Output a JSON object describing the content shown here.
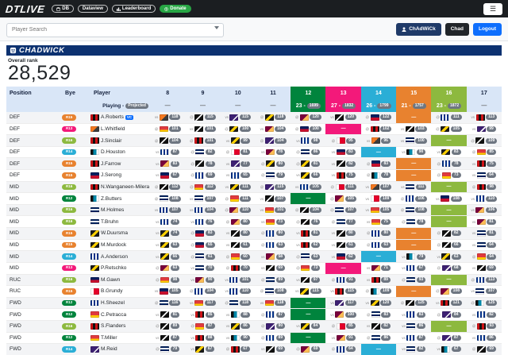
{
  "navbar": {
    "brand": "DTLIVE",
    "badges": [
      {
        "label": "DB",
        "icon": "database-icon",
        "style": "outline"
      },
      {
        "label": "Dataview",
        "icon": "",
        "style": "outline"
      },
      {
        "label": "Leaderboard",
        "icon": "leaderboard-icon",
        "style": "outline"
      },
      {
        "label": "Donate",
        "icon": "donate-icon",
        "style": "green"
      }
    ]
  },
  "search": {
    "placeholder": "Player Search",
    "buttons": [
      {
        "label": "ChAdWiCk",
        "style": "navy",
        "icon": "person-icon"
      },
      {
        "label": "Chad",
        "style": "dark",
        "icon": ""
      },
      {
        "label": "Logout",
        "style": "blue",
        "icon": ""
      }
    ]
  },
  "team": {
    "name": "CHADWICK",
    "rank_label": "Overall rank",
    "rank_value": "28,529"
  },
  "colors": {
    "byes": {
      "R12": "#00843d",
      "R13": "#f3197a",
      "R14": "#2aaed6",
      "R15": "#e8822f",
      "R16": "#8db93f"
    },
    "score_pill": "#6e7681",
    "logout_blue": "#0d6efd",
    "donate_green": "#28a745",
    "banner_navy": "#0c3170"
  },
  "table": {
    "columns": {
      "position": "Position",
      "bye": "Bye",
      "player": "Player"
    },
    "subheader_label": "Playing -",
    "subheader_badge": "Projected",
    "rounds": [
      {
        "num": "8",
        "proj": "—"
      },
      {
        "num": "9",
        "proj": "—"
      },
      {
        "num": "10",
        "proj": "—"
      },
      {
        "num": "11",
        "proj": "—"
      },
      {
        "num": "12",
        "bye": "R12",
        "score": "23 -",
        "proj_badge": "1699"
      },
      {
        "num": "13",
        "bye": "R13",
        "score": "27 -",
        "proj_badge": "1832"
      },
      {
        "num": "14",
        "bye": "R14",
        "score": "26 -",
        "proj_badge": "1799"
      },
      {
        "num": "15",
        "bye": "R15",
        "score": "21 -",
        "proj_badge": "1757"
      },
      {
        "num": "16",
        "bye": "R16",
        "score": "23 -",
        "proj_badge": "1872"
      },
      {
        "num": "17",
        "proj": "—"
      }
    ],
    "rows": [
      {
        "position": "DEF",
        "bye": "R15",
        "name": "A.Roberts",
        "badge": "VC",
        "flag": 2,
        "cells": [
          "vs|118|7",
          "@|115|12",
          "vs|115|4",
          "@|118|1",
          "@|120|9",
          "vs|120|12",
          "@|122|3",
          "bye",
          "@|111|0",
          "vs|113|2"
        ]
      },
      {
        "position": "DEF",
        "bye": "R13",
        "name": "L.Whitfield",
        "badge": "",
        "flag": 7,
        "cells": [
          "@|101|10",
          "vs|101|12",
          "@|100|1",
          "vs|104|9",
          "@|100|3",
          "bye",
          "@|102|2",
          "vs|103|12",
          "@|105|1",
          "vs|99|4"
        ]
      },
      {
        "position": "DEF",
        "bye": "R16",
        "name": "J.Sinclair",
        "badge": "",
        "flag": 2,
        "cells": [
          "@|104|12",
          "@|101|2",
          "vs|99|1",
          "@|104|4",
          "vs|98|0",
          "@|95|5",
          "vs|96|7",
          "vs|100|8",
          "bye",
          "@|109|12"
        ]
      },
      {
        "position": "DEF",
        "bye": "R14",
        "name": "D.Houston",
        "badge": "",
        "flag": 6,
        "cells": [
          "vs|87|0",
          "@|82|8",
          "@|81|5",
          "vs|78|9",
          "@|86|8",
          "vs|83|3",
          "bye",
          "vs|90|6",
          "vs|83|1",
          "@|85|10"
        ]
      },
      {
        "position": "DEF",
        "bye": "R15",
        "name": "J.Farrow",
        "badge": "",
        "flag": 2,
        "cells": [
          "vs|83|9",
          "@|78|12",
          "vs|77|4",
          "@|80|1",
          "@|81|1",
          "vs|82|12",
          "@|83|3",
          "bye",
          "@|78|0",
          "vs|75|2"
        ]
      },
      {
        "position": "DEF",
        "bye": "R15",
        "name": "J.Serong",
        "badge": "",
        "flag": 3,
        "cells": [
          "vs|67|3",
          "@|69|0",
          "vs|65|0",
          "@|79|8",
          "vs|66|1",
          "vs|75|2",
          "@|78|6",
          "bye",
          "@|73|10",
          "vs|64|8"
        ]
      },
      {
        "position": "MID",
        "bye": "R16",
        "name": "N.Wanganeen-Milera",
        "badge": "C",
        "flag": 2,
        "cells": [
          "@|112|12",
          "@|112|10",
          "vs|111|1",
          "@|115|4",
          "vs|105|0",
          "@|111|5",
          "vs|107|7",
          "vs|111|8",
          "bye",
          "@|98|2"
        ]
      },
      {
        "position": "MID",
        "bye": "R12",
        "name": "Z.Butters",
        "badge": "",
        "flag": 6,
        "cells": [
          "@|108|8",
          "vs|107|8",
          "@|111|10",
          "vs|107|12",
          "bye",
          "@|105|9",
          "vs|109|5",
          "@|106|0",
          "vs|108|3",
          "vs|110|0"
        ]
      },
      {
        "position": "MID",
        "bye": "R16",
        "name": "M.Holmes",
        "badge": "",
        "flag": 8,
        "cells": [
          "vs|107|0",
          "vs|104|0",
          "@|110|9",
          "vs|101|10",
          "@|104|12",
          "@|107|8",
          "vs|105|10",
          "@|108|8",
          "bye",
          "vs|106|9"
        ]
      },
      {
        "position": "MID",
        "bye": "R16",
        "name": "T.Bruhn",
        "badge": "",
        "flag": 8,
        "cells": [
          "vs|74|0",
          "vs|76|0",
          "@|80|9",
          "vs|73|10",
          "@|76|12",
          "@|77|8",
          "vs|75|10",
          "@|78|8",
          "bye",
          "vs|81|9"
        ]
      },
      {
        "position": "MID",
        "bye": "R15",
        "name": "W.Duursma",
        "badge": "",
        "flag": 1,
        "cells": [
          "vs|74|1",
          "@|83|3",
          "vs|80|12",
          "@|80|0",
          "vs|81|2",
          "vs|80|12",
          "@|80|0",
          "bye",
          "@|82|12",
          "vs|81|8"
        ]
      },
      {
        "position": "MID",
        "bye": "R15",
        "name": "M.Murdock",
        "badge": "",
        "flag": 1,
        "cells": [
          "vs|63|1",
          "@|65|3",
          "vs|61|12",
          "@|63|0",
          "vs|62|2",
          "vs|61|12",
          "@|63|0",
          "bye",
          "@|66|12",
          "vs|64|8"
        ]
      },
      {
        "position": "MID",
        "bye": "R14",
        "name": "A.Anderson",
        "badge": "",
        "flag": 0,
        "cells": [
          "vs|66|1",
          "@|61|8",
          "@|60|10",
          "vs|58|9",
          "@|63|8",
          "vs|62|3",
          "bye",
          "vs|79|6",
          "vs|63|1",
          "@|64|10"
        ]
      },
      {
        "position": "MID",
        "bye": "R13",
        "name": "P.Retschko",
        "badge": "",
        "flag": 1,
        "cells": [
          "@|63|9",
          "vs|70|8",
          "@|70|2",
          "vs|69|12",
          "@|73|10",
          "bye",
          "vs|71|9",
          "vs|67|0",
          "@|68|4",
          "vs|69|12"
        ]
      },
      {
        "position": "RUC",
        "bye": "R16",
        "name": "M.Gawn",
        "badge": "",
        "flag": 3,
        "cells": [
          "@|98|10",
          "vs|90|9",
          "vs|101|0",
          "@|89|8",
          "vs|97|12",
          "@|91|0",
          "vs|89|2",
          "@|93|8",
          "bye",
          "@|113|0"
        ]
      },
      {
        "position": "RUC",
        "bye": "R15",
        "name": "B.Grundy",
        "badge": "",
        "flag": 5,
        "cells": [
          "vs|105|3",
          "@|104|0",
          "vs|110|0",
          "@|108|8",
          "vs|115|1",
          "vs|115|2",
          "@|109|6",
          "bye",
          "@|108|9",
          "vs|107|8"
        ]
      },
      {
        "position": "FWD",
        "bye": "R12",
        "name": "H.Sheezel",
        "badge": "",
        "flag": 0,
        "cells": [
          "@|116|8",
          "vs|117|10",
          "@|118|8",
          "vs|118|10",
          "bye",
          "vs|117|4",
          "vs|120|1",
          "@|125|12",
          "vs|121|2",
          "@|125|6"
        ]
      },
      {
        "position": "FWD",
        "bye": "R12",
        "name": "C.Petracca",
        "badge": "",
        "flag": 10,
        "cells": [
          "vs|81|12",
          "vs|85|2",
          "vs|88|6",
          "@|87|0",
          "bye",
          "vs|100|9",
          "@|83|8",
          "vs|83|0",
          "@|84|4",
          "vs|82|0"
        ]
      },
      {
        "position": "FWD",
        "bye": "R16",
        "name": "S.Flanders",
        "badge": "",
        "flag": 2,
        "cells": [
          "@|89|12",
          "@|87|10",
          "vs|86|1",
          "@|90|4",
          "vs|84|1",
          "@|85|5",
          "vs|82|12",
          "vs|86|8",
          "bye",
          "@|93|2"
        ]
      },
      {
        "position": "FWD",
        "bye": "R12",
        "name": "T.Miller",
        "badge": "",
        "flag": 10,
        "cells": [
          "vs|87|12",
          "vs|88|2",
          "vs|90|6",
          "@|89|0",
          "bye",
          "vs|91|9",
          "@|86|8",
          "vs|87|0",
          "@|87|4",
          "vs|86|0"
        ]
      },
      {
        "position": "FWD",
        "bye": "R14",
        "name": "M.Reid",
        "badge": "",
        "flag": 4,
        "cells": [
          "@|79|8",
          "vs|67|1",
          "@|67|2",
          "vs|69|12",
          "@|69|9",
          "@|64|0",
          "bye",
          "vs|82|8",
          "vs|67|6",
          "@|69|12"
        ]
      }
    ]
  }
}
